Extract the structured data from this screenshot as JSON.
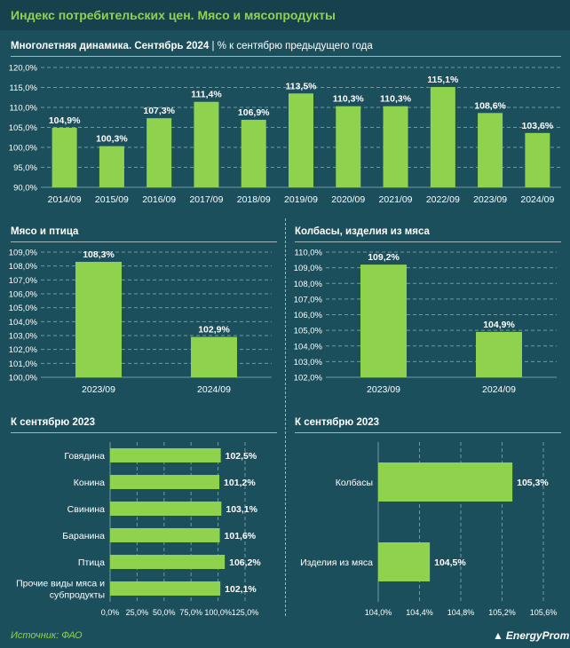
{
  "header": {
    "title": "Индекс потребительских цен. Мясо и мясопродукты"
  },
  "footer": {
    "source": "Источник: ФАО",
    "logo": "EnergyProm"
  },
  "colors": {
    "bar": "#8fd24e",
    "background": "#1c4f5c",
    "accent": "#8fd24e"
  },
  "chart_data": [
    {
      "id": "main",
      "type": "bar",
      "title": "Многолетняя динамика. Сентябрь 2024",
      "subtitle": "| % к сентябрю предыдущего года",
      "categories": [
        "2014/09",
        "2015/09",
        "2016/09",
        "2017/09",
        "2018/09",
        "2019/09",
        "2020/09",
        "2021/09",
        "2022/09",
        "2023/09",
        "2024/09"
      ],
      "values": [
        104.9,
        100.3,
        107.3,
        111.4,
        106.9,
        113.5,
        110.3,
        110.3,
        115.1,
        108.6,
        103.6
      ],
      "value_labels": [
        "104,9%",
        "100,3%",
        "107,3%",
        "111,4%",
        "106,9%",
        "113,5%",
        "110,3%",
        "110,3%",
        "115,1%",
        "108,6%",
        "103,6%"
      ],
      "ylim": [
        90,
        120
      ],
      "yticks": [
        90,
        95,
        100,
        105,
        110,
        115,
        120
      ],
      "ytick_labels": [
        "90,0%",
        "95,0%",
        "100,0%",
        "105,0%",
        "110,0%",
        "115,0%",
        "120,0%"
      ]
    },
    {
      "id": "meat",
      "type": "bar",
      "title": "Мясо и птица",
      "categories": [
        "2023/09",
        "2024/09"
      ],
      "values": [
        108.3,
        102.9
      ],
      "value_labels": [
        "108,3%",
        "102,9%"
      ],
      "ylim": [
        100,
        109
      ],
      "yticks": [
        100,
        101,
        102,
        103,
        104,
        105,
        106,
        107,
        108,
        109
      ],
      "ytick_labels": [
        "100,0%",
        "101,0%",
        "102,0%",
        "103,0%",
        "104,0%",
        "105,0%",
        "106,0%",
        "107,0%",
        "108,0%",
        "109,0%"
      ]
    },
    {
      "id": "sausage",
      "type": "bar",
      "title": "Колбасы, изделия из мяса",
      "categories": [
        "2023/09",
        "2024/09"
      ],
      "values": [
        109.2,
        104.9
      ],
      "value_labels": [
        "109,2%",
        "104,9%"
      ],
      "ylim": [
        102,
        110
      ],
      "yticks": [
        102,
        103,
        104,
        105,
        106,
        107,
        108,
        109,
        110
      ],
      "ytick_labels": [
        "102,0%",
        "103,0%",
        "104,0%",
        "105,0%",
        "106,0%",
        "107,0%",
        "108,0%",
        "109,0%",
        "110,0%"
      ]
    },
    {
      "id": "meat-types",
      "type": "bar",
      "orientation": "horizontal",
      "title": "К сентябрю 2023",
      "categories": [
        "Говядина",
        "Конина",
        "Свинина",
        "Баранина",
        "Птица",
        "Прочие виды мяса и субпродукты"
      ],
      "category_lines": [
        [
          "Говядина"
        ],
        [
          "Конина"
        ],
        [
          "Свинина"
        ],
        [
          "Баранина"
        ],
        [
          "Птица"
        ],
        [
          "Прочие виды мяса и",
          "субпродукты"
        ]
      ],
      "values": [
        102.5,
        101.2,
        103.1,
        101.6,
        106.2,
        102.1
      ],
      "value_labels": [
        "102,5%",
        "101,2%",
        "103,1%",
        "101,6%",
        "106,2%",
        "102,1%"
      ],
      "xlim": [
        0,
        125
      ],
      "xticks": [
        0,
        25,
        50,
        75,
        100,
        125
      ],
      "xtick_labels": [
        "0,0%",
        "25,0%",
        "50,0%",
        "75,0%",
        "100,0%",
        "125,0%"
      ]
    },
    {
      "id": "sausage-types",
      "type": "bar",
      "orientation": "horizontal",
      "title": "К сентябрю 2023",
      "categories": [
        "Колбасы",
        "Изделия из мяса"
      ],
      "category_lines": [
        [
          "Колбасы"
        ],
        [
          "Изделия из мяса"
        ]
      ],
      "values": [
        105.3,
        104.5
      ],
      "value_labels": [
        "105,3%",
        "104,5%"
      ],
      "xlim": [
        104.0,
        105.6
      ],
      "xticks": [
        104.0,
        104.4,
        104.8,
        105.2,
        105.6
      ],
      "xtick_labels": [
        "104,0%",
        "104,4%",
        "104,8%",
        "105,2%",
        "105,6%"
      ]
    }
  ]
}
